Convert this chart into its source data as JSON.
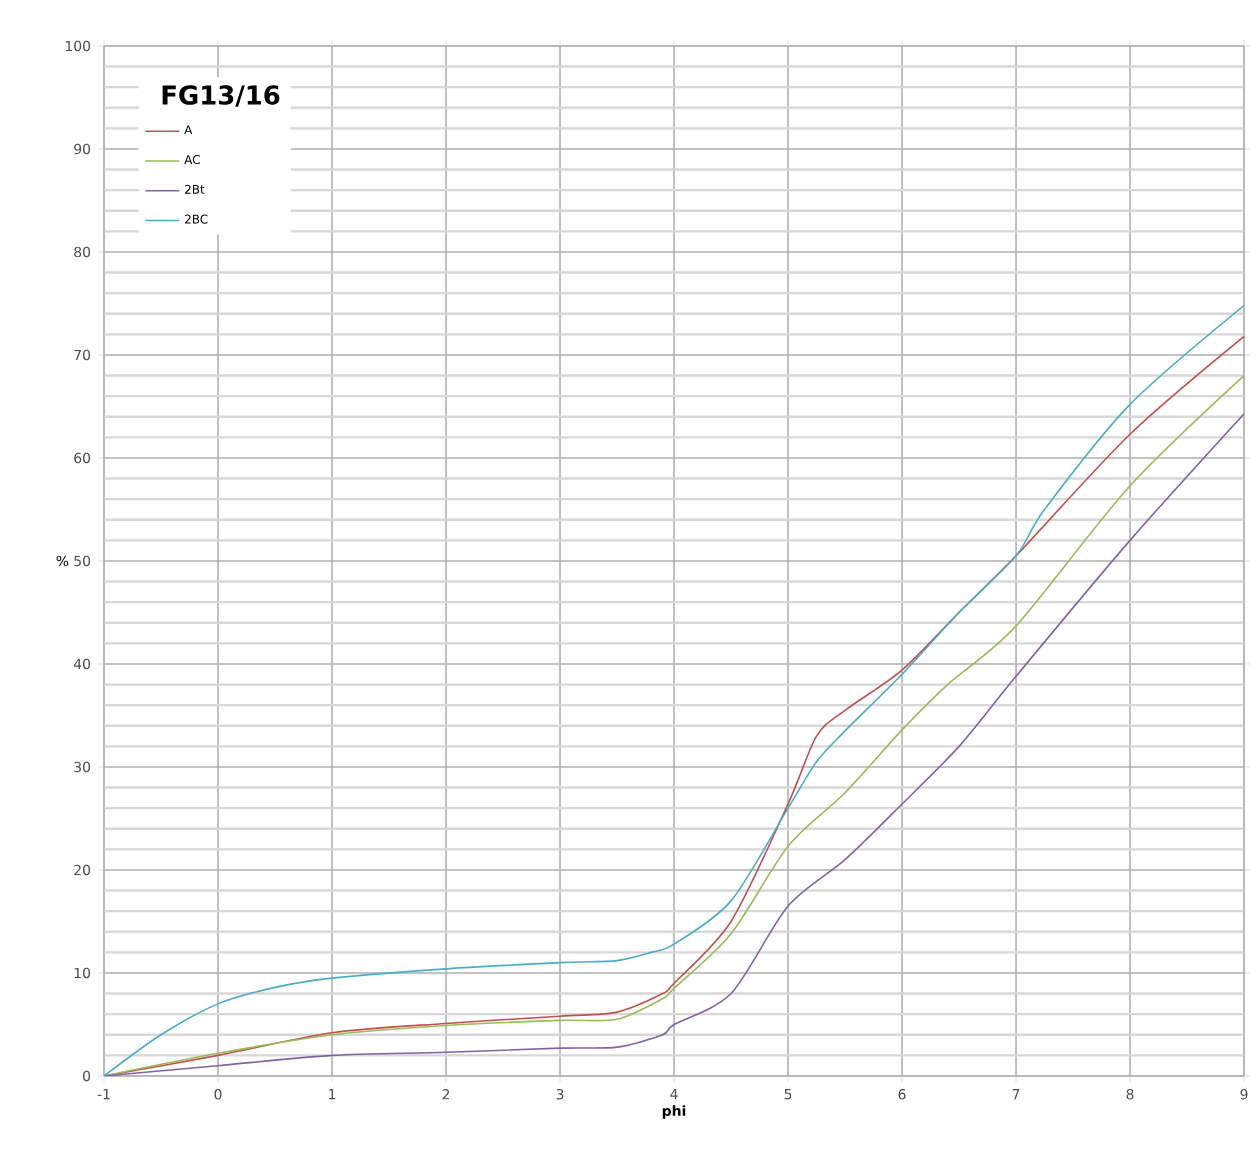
{
  "chart_data": {
    "type": "line",
    "xlabel": "phi",
    "ylabel": "%",
    "legend_title": "FG13/16",
    "xlim": [
      -1,
      9
    ],
    "ylim": [
      0,
      100
    ],
    "xticks": [
      -1,
      0,
      1,
      2,
      3,
      4,
      5,
      6,
      7,
      8,
      9
    ],
    "yticks": [
      0,
      10,
      20,
      30,
      40,
      50,
      60,
      70,
      80,
      90,
      100
    ],
    "grid": true,
    "legend": "top left",
    "marker": "none",
    "line_style": "solid",
    "series": [
      {
        "name": "A",
        "color": "#c0504d",
        "x": [
          -1,
          0,
          1,
          2,
          3,
          3.5,
          3.9,
          4,
          4.5,
          5,
          5.25,
          5.5,
          6,
          6.5,
          7,
          8,
          9
        ],
        "values": [
          0,
          2,
          4.2,
          5.1,
          5.8,
          6.2,
          8,
          9,
          15,
          26.4,
          33,
          35.5,
          39.4,
          45,
          50.5,
          62.3,
          71.8
        ]
      },
      {
        "name": "AC",
        "color": "#9bbb59",
        "x": [
          -1,
          0,
          1,
          2,
          3,
          3.5,
          3.9,
          4,
          4.5,
          5,
          5.5,
          6,
          6.4,
          7,
          8,
          9
        ],
        "values": [
          0,
          2.2,
          4,
          4.9,
          5.4,
          5.5,
          7.5,
          8.5,
          13.8,
          22.3,
          27.5,
          33.6,
          38,
          43.7,
          57.3,
          68
        ]
      },
      {
        "name": "2Bt",
        "color": "#8064a2",
        "x": [
          -1,
          0,
          1,
          2,
          3,
          3.5,
          3.9,
          4,
          4.5,
          5,
          5.5,
          6,
          6.5,
          7,
          8,
          9
        ],
        "values": [
          0,
          1,
          2,
          2.3,
          2.7,
          2.8,
          4,
          5,
          8,
          16.5,
          21,
          26.4,
          32,
          38.8,
          52,
          64.3
        ]
      },
      {
        "name": "2BC",
        "color": "#4bacc6",
        "x": [
          -1,
          -0.5,
          0,
          0.5,
          1,
          2,
          3,
          3.5,
          3.8,
          4,
          4.5,
          5,
          5.25,
          5.5,
          6,
          6.5,
          7,
          7.25,
          8,
          9
        ],
        "values": [
          0,
          4,
          7,
          8.6,
          9.5,
          10.4,
          11,
          11.2,
          12,
          12.8,
          17,
          26,
          30.5,
          33.5,
          39,
          45,
          50.5,
          55,
          65.2,
          74.8
        ]
      }
    ]
  }
}
